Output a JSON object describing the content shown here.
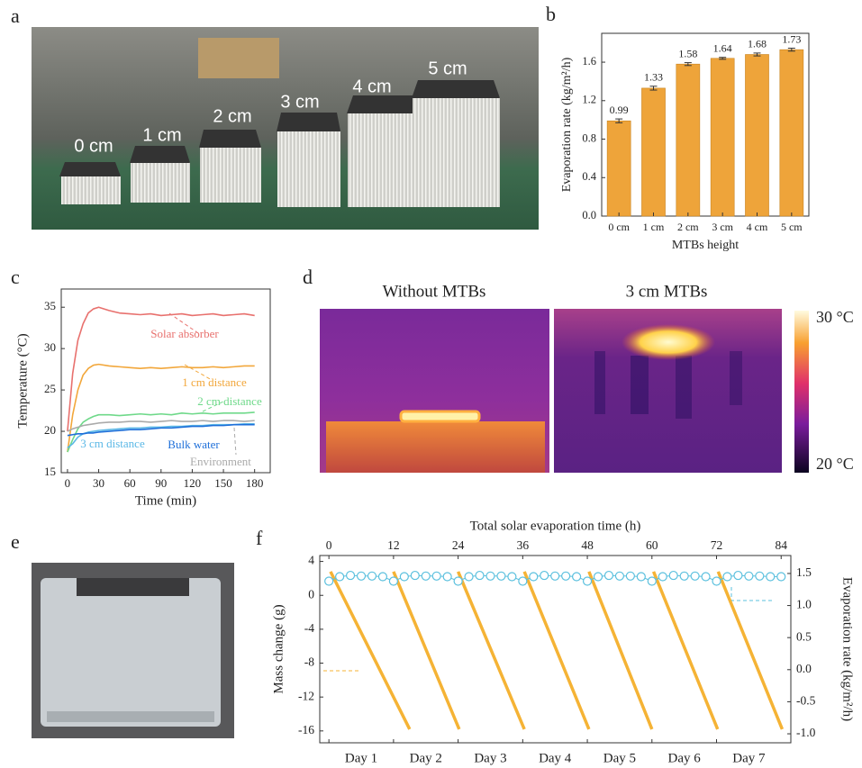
{
  "panel_letters": [
    "a",
    "b",
    "c",
    "d",
    "e",
    "f"
  ],
  "photo_labels": [
    "0 cm",
    "1 cm",
    "2 cm",
    "3 cm",
    "4 cm",
    "5 cm"
  ],
  "thermal": {
    "titles": [
      "Without MTBs",
      "3 cm MTBs"
    ],
    "colorbar_max": "30 °C",
    "colorbar_min": "20 °C"
  },
  "chart_data": [
    {
      "type": "bar",
      "ylabel": "Evaporation rate (kg/m²/h)",
      "xlabel": "MTBs height",
      "categories": [
        "0 cm",
        "1 cm",
        "2 cm",
        "3 cm",
        "4 cm",
        "5 cm"
      ],
      "values": [
        0.99,
        1.33,
        1.58,
        1.64,
        1.68,
        1.73
      ],
      "errors": [
        0.02,
        0.02,
        0.015,
        0.01,
        0.015,
        0.015
      ],
      "color": "#eea43a",
      "ylim": [
        0,
        1.9
      ],
      "yticks": [
        {
          "value": 0,
          "label": "0.0"
        },
        0.4,
        0.8,
        1.2,
        1.6
      ]
    },
    {
      "type": "line",
      "ylabel": "Temperature (°C)",
      "xlabel": "Time (min)",
      "x": [
        0,
        5,
        10,
        15,
        20,
        25,
        30,
        40,
        50,
        60,
        70,
        80,
        90,
        100,
        110,
        120,
        130,
        140,
        150,
        160,
        170,
        180
      ],
      "xlim": [
        -6,
        195
      ],
      "xticks": [
        0,
        30,
        60,
        90,
        120,
        150,
        180
      ],
      "ylim": [
        15,
        37.2
      ],
      "yticks": [
        15,
        20,
        25,
        30,
        35
      ],
      "series": [
        {
          "name": "Solar absorber",
          "color": "#e8716e",
          "values": [
            20,
            27,
            31,
            33,
            34.3,
            34.8,
            35,
            34.6,
            34.3,
            34.2,
            34.1,
            34.2,
            34.0,
            34.1,
            34.2,
            34.0,
            34.1,
            34.2,
            34.0,
            34.1,
            34.2,
            34.0
          ]
        },
        {
          "name": "1 cm distance",
          "color": "#f2a73b",
          "values": [
            17.5,
            22,
            25,
            26.8,
            27.6,
            28,
            28.1,
            27.9,
            27.8,
            27.7,
            27.6,
            27.7,
            27.6,
            27.7,
            27.8,
            27.7,
            27.7,
            27.8,
            27.7,
            27.8,
            27.9,
            27.9
          ]
        },
        {
          "name": "2 cm distance",
          "color": "#6fd98a",
          "values": [
            17.5,
            19,
            20.3,
            21.1,
            21.5,
            21.8,
            22,
            22,
            21.9,
            22,
            22.1,
            22,
            22.1,
            22,
            22.2,
            22.1,
            22.2,
            22.1,
            22.2,
            22.2,
            22.2,
            22.3
          ]
        },
        {
          "name": "3 cm distance",
          "color": "#5bb8e6",
          "values": [
            18,
            18.5,
            19.3,
            19.7,
            19.9,
            20,
            20.1,
            20.2,
            20.3,
            20.4,
            20.4,
            20.5,
            20.5,
            20.6,
            20.6,
            20.7,
            20.7,
            20.8,
            20.8,
            20.8,
            20.9,
            20.9
          ]
        },
        {
          "name": "Bulk water",
          "color": "#1e6fd9",
          "values": [
            19.5,
            19.6,
            19.7,
            19.7,
            19.8,
            19.8,
            19.9,
            20,
            20.1,
            20.2,
            20.2,
            20.3,
            20.4,
            20.4,
            20.5,
            20.6,
            20.6,
            20.7,
            20.7,
            20.8,
            20.8,
            20.8
          ]
        },
        {
          "name": "Environment",
          "color": "#aaaaaa",
          "values": [
            20,
            20.3,
            20.5,
            20.7,
            20.8,
            20.9,
            21,
            21.1,
            21.1,
            21.2,
            21.2,
            21.1,
            21.2,
            21.3,
            21.2,
            21.2,
            21.3,
            21.2,
            21.3,
            21.3,
            21.2,
            21.3
          ]
        }
      ]
    },
    {
      "type": "line",
      "xaxis_top": true,
      "xlabel": "Total solar evaporation time (h)",
      "ylabel": "Mass change (g)",
      "y2label": "Evaporation rate (kg/m²/h)",
      "xlim": [
        -1.7,
        85.8
      ],
      "xticks": [
        0,
        12,
        24,
        36,
        48,
        60,
        72,
        84
      ],
      "categories": [
        "Day 1",
        "Day 2",
        "Day 3",
        "Day 4",
        "Day 5",
        "Day 6",
        "Day 7"
      ],
      "ylim": [
        -17.4,
        4.7
      ],
      "yticks": [
        4,
        0,
        -4,
        -8,
        -12,
        -16
      ],
      "y2lim": [
        -1.14,
        1.78
      ],
      "y2ticks": [
        1.5,
        {
          "value": 1,
          "label": "1.0"
        },
        0.5,
        {
          "value": 0,
          "label": "0.0"
        },
        -0.5,
        {
          "value": -1,
          "label": "-1.0"
        }
      ],
      "series": [
        {
          "color": "#f5b335",
          "x": [
            0.3,
            15,
            15,
            12,
            24.2,
            24.2,
            24,
            36.3,
            36.3,
            36.3,
            48.3,
            48.3,
            48.3,
            60,
            60,
            60.3,
            72.2,
            72.2,
            72.3,
            84.2
          ],
          "values": [
            2.8,
            -15.8,
            null,
            2.8,
            -15.8,
            null,
            2.8,
            -15.8,
            null,
            2.8,
            -15.8,
            null,
            2.8,
            -15.8,
            null,
            2.8,
            -15.8,
            null,
            2.8,
            -15.8
          ]
        },
        {
          "axis": "y2",
          "marker": "circle",
          "color": "#5bc0de",
          "x": [
            0,
            2,
            4,
            6,
            8,
            10,
            12,
            14,
            16,
            18,
            20,
            22,
            24,
            26,
            28,
            30,
            32,
            34,
            36,
            38,
            40,
            42,
            44,
            46,
            48,
            50,
            52,
            54,
            56,
            58,
            60,
            62,
            64,
            66,
            68,
            70,
            72,
            74,
            76,
            78,
            80,
            82,
            84
          ],
          "values": [
            1.38,
            1.45,
            1.47,
            1.46,
            1.46,
            1.45,
            1.38,
            1.45,
            1.47,
            1.46,
            1.46,
            1.45,
            1.38,
            1.45,
            1.47,
            1.46,
            1.46,
            1.45,
            1.38,
            1.45,
            1.47,
            1.46,
            1.46,
            1.45,
            1.38,
            1.45,
            1.47,
            1.46,
            1.46,
            1.45,
            1.38,
            1.45,
            1.47,
            1.46,
            1.46,
            1.45,
            1.38,
            1.45,
            1.47,
            1.46,
            1.46,
            1.45,
            1.45
          ]
        }
      ]
    }
  ]
}
